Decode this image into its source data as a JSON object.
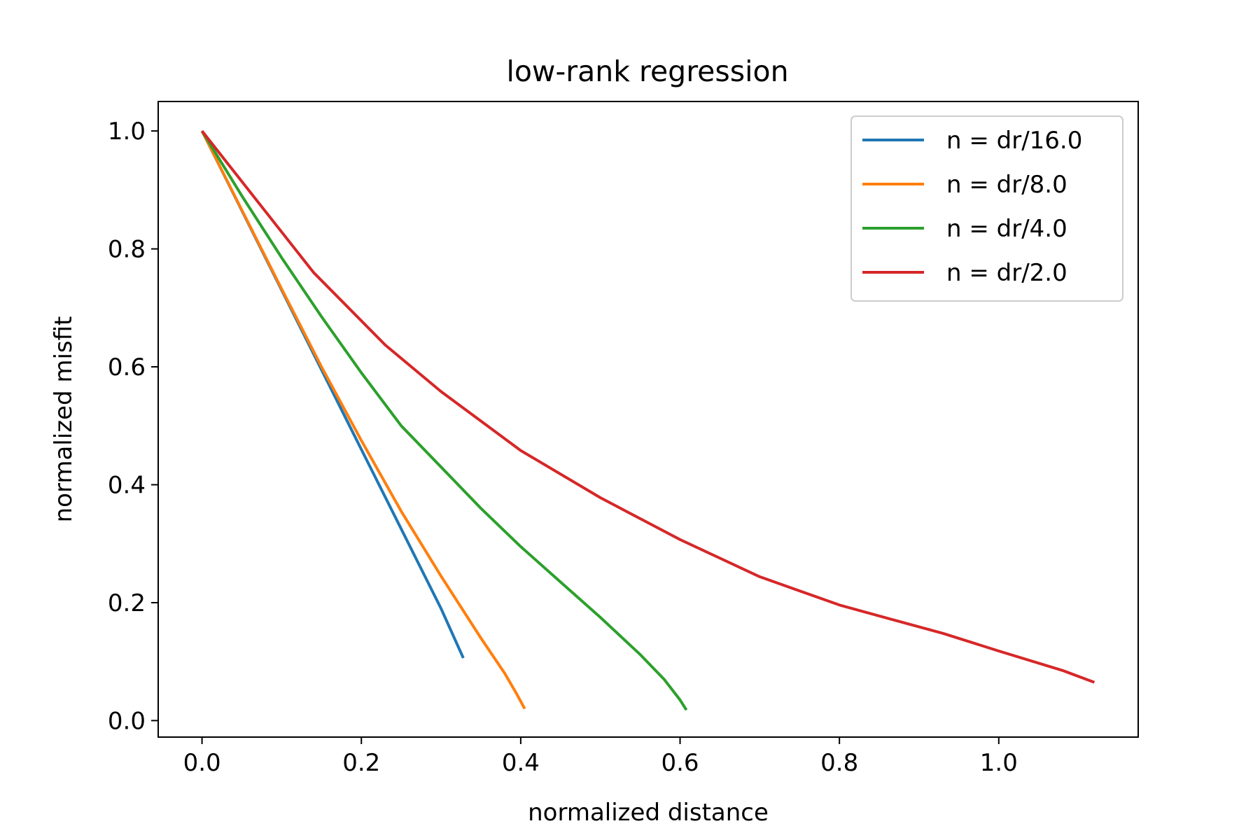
{
  "chart_data": {
    "type": "line",
    "title": "low-rank regression",
    "xlabel": "normalized distance",
    "ylabel": "normalized misfit",
    "xlim": [
      -0.055,
      1.175
    ],
    "ylim": [
      -0.028,
      1.05
    ],
    "xticks": [
      0.0,
      0.2,
      0.4,
      0.6,
      0.8,
      1.0
    ],
    "xtick_labels": [
      "0.0",
      "0.2",
      "0.4",
      "0.6",
      "0.8",
      "1.0"
    ],
    "yticks": [
      0.0,
      0.2,
      0.4,
      0.6,
      0.8,
      1.0
    ],
    "ytick_labels": [
      "0.0",
      "0.2",
      "0.4",
      "0.6",
      "0.8",
      "1.0"
    ],
    "grid": false,
    "legend_position": "upper right",
    "series": [
      {
        "name": "n = dr/16.0",
        "color": "#1f77b4",
        "x": [
          0.0,
          0.05,
          0.1,
          0.15,
          0.2,
          0.25,
          0.3,
          0.328
        ],
        "y": [
          1.0,
          0.865,
          0.73,
          0.595,
          0.46,
          0.325,
          0.19,
          0.106
        ]
      },
      {
        "name": "n = dr/8.0",
        "color": "#ff7f0e",
        "x": [
          0.0,
          0.05,
          0.1,
          0.15,
          0.2,
          0.25,
          0.3,
          0.35,
          0.38,
          0.395,
          0.405
        ],
        "y": [
          1.0,
          0.866,
          0.732,
          0.6,
          0.475,
          0.355,
          0.245,
          0.14,
          0.08,
          0.045,
          0.02
        ]
      },
      {
        "name": "n = dr/4.0",
        "color": "#2ca02c",
        "x": [
          0.0,
          0.05,
          0.1,
          0.15,
          0.2,
          0.25,
          0.3,
          0.35,
          0.4,
          0.45,
          0.5,
          0.55,
          0.58,
          0.6,
          0.608
        ],
        "y": [
          1.0,
          0.89,
          0.785,
          0.685,
          0.59,
          0.5,
          0.43,
          0.36,
          0.295,
          0.235,
          0.175,
          0.112,
          0.07,
          0.035,
          0.018
        ]
      },
      {
        "name": "n = dr/2.0",
        "color": "#d62728",
        "x": [
          0.0,
          0.07,
          0.14,
          0.23,
          0.3,
          0.4,
          0.5,
          0.6,
          0.7,
          0.8,
          0.87,
          0.93,
          1.0,
          1.08,
          1.12
        ],
        "y": [
          1.0,
          0.88,
          0.76,
          0.637,
          0.558,
          0.458,
          0.378,
          0.307,
          0.244,
          0.196,
          0.17,
          0.148,
          0.118,
          0.085,
          0.065
        ]
      }
    ]
  }
}
